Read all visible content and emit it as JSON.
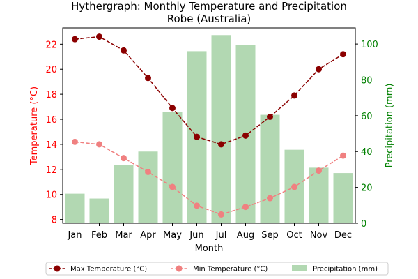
{
  "chart_data": {
    "type": "bar+line",
    "title": "Hythergraph: Monthly Temperature and Precipitation",
    "subtitle": "Robe (Australia)",
    "xlabel": "Month",
    "ylabel_left": "Temperature (°C)",
    "ylabel_right": "Precipitation (mm)",
    "categories": [
      "Jan",
      "Feb",
      "Mar",
      "Apr",
      "May",
      "Jun",
      "Jul",
      "Aug",
      "Sep",
      "Oct",
      "Nov",
      "Dec"
    ],
    "ylim_left": [
      7.7,
      23.3
    ],
    "ylim_right": [
      0,
      109
    ],
    "yticks_left": [
      8,
      10,
      12,
      14,
      16,
      18,
      20,
      22
    ],
    "yticks_right": [
      0,
      20,
      40,
      60,
      80,
      100
    ],
    "grid": false,
    "legend_position": "bottom",
    "series": [
      {
        "name": "Max Temperature (°C)",
        "type": "line",
        "axis": "left",
        "color": "#8b0000",
        "linestyle": "dashed",
        "marker": "circle",
        "values": [
          22.4,
          22.6,
          21.5,
          19.3,
          16.9,
          14.6,
          14.0,
          14.7,
          16.2,
          17.9,
          20.0,
          21.2
        ]
      },
      {
        "name": "Min Temperature (°C)",
        "type": "line",
        "axis": "left",
        "color": "#f08080",
        "linestyle": "dashed",
        "marker": "circle",
        "values": [
          14.2,
          14.0,
          12.9,
          11.8,
          10.6,
          9.1,
          8.4,
          9.0,
          9.7,
          10.6,
          11.9,
          13.1
        ]
      },
      {
        "name": "Precipitation (mm)",
        "type": "bar",
        "axis": "right",
        "color": "#b2d8b2",
        "values": [
          16.5,
          13.8,
          32.5,
          40,
          62,
          96,
          105,
          99.5,
          60.5,
          41,
          31,
          28
        ]
      }
    ],
    "colors": {
      "left_axis": "#ff0000",
      "right_axis": "#008000"
    }
  }
}
